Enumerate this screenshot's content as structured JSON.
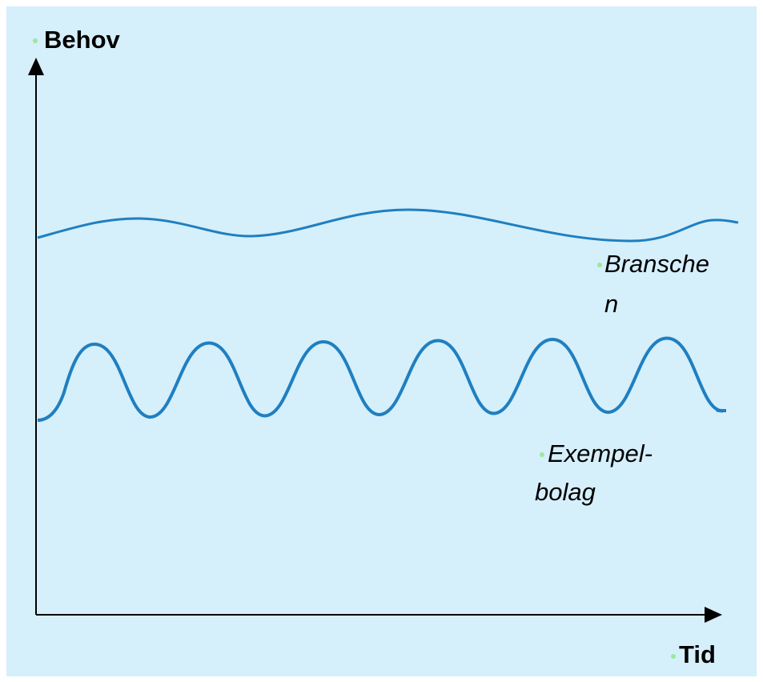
{
  "y_axis_label": "Behov",
  "x_axis_label": "Tid",
  "curves": [
    {
      "label_lines": [
        "Bransche",
        "n"
      ]
    },
    {
      "label_lines": [
        "Exempel-",
        "bolag"
      ]
    }
  ]
}
